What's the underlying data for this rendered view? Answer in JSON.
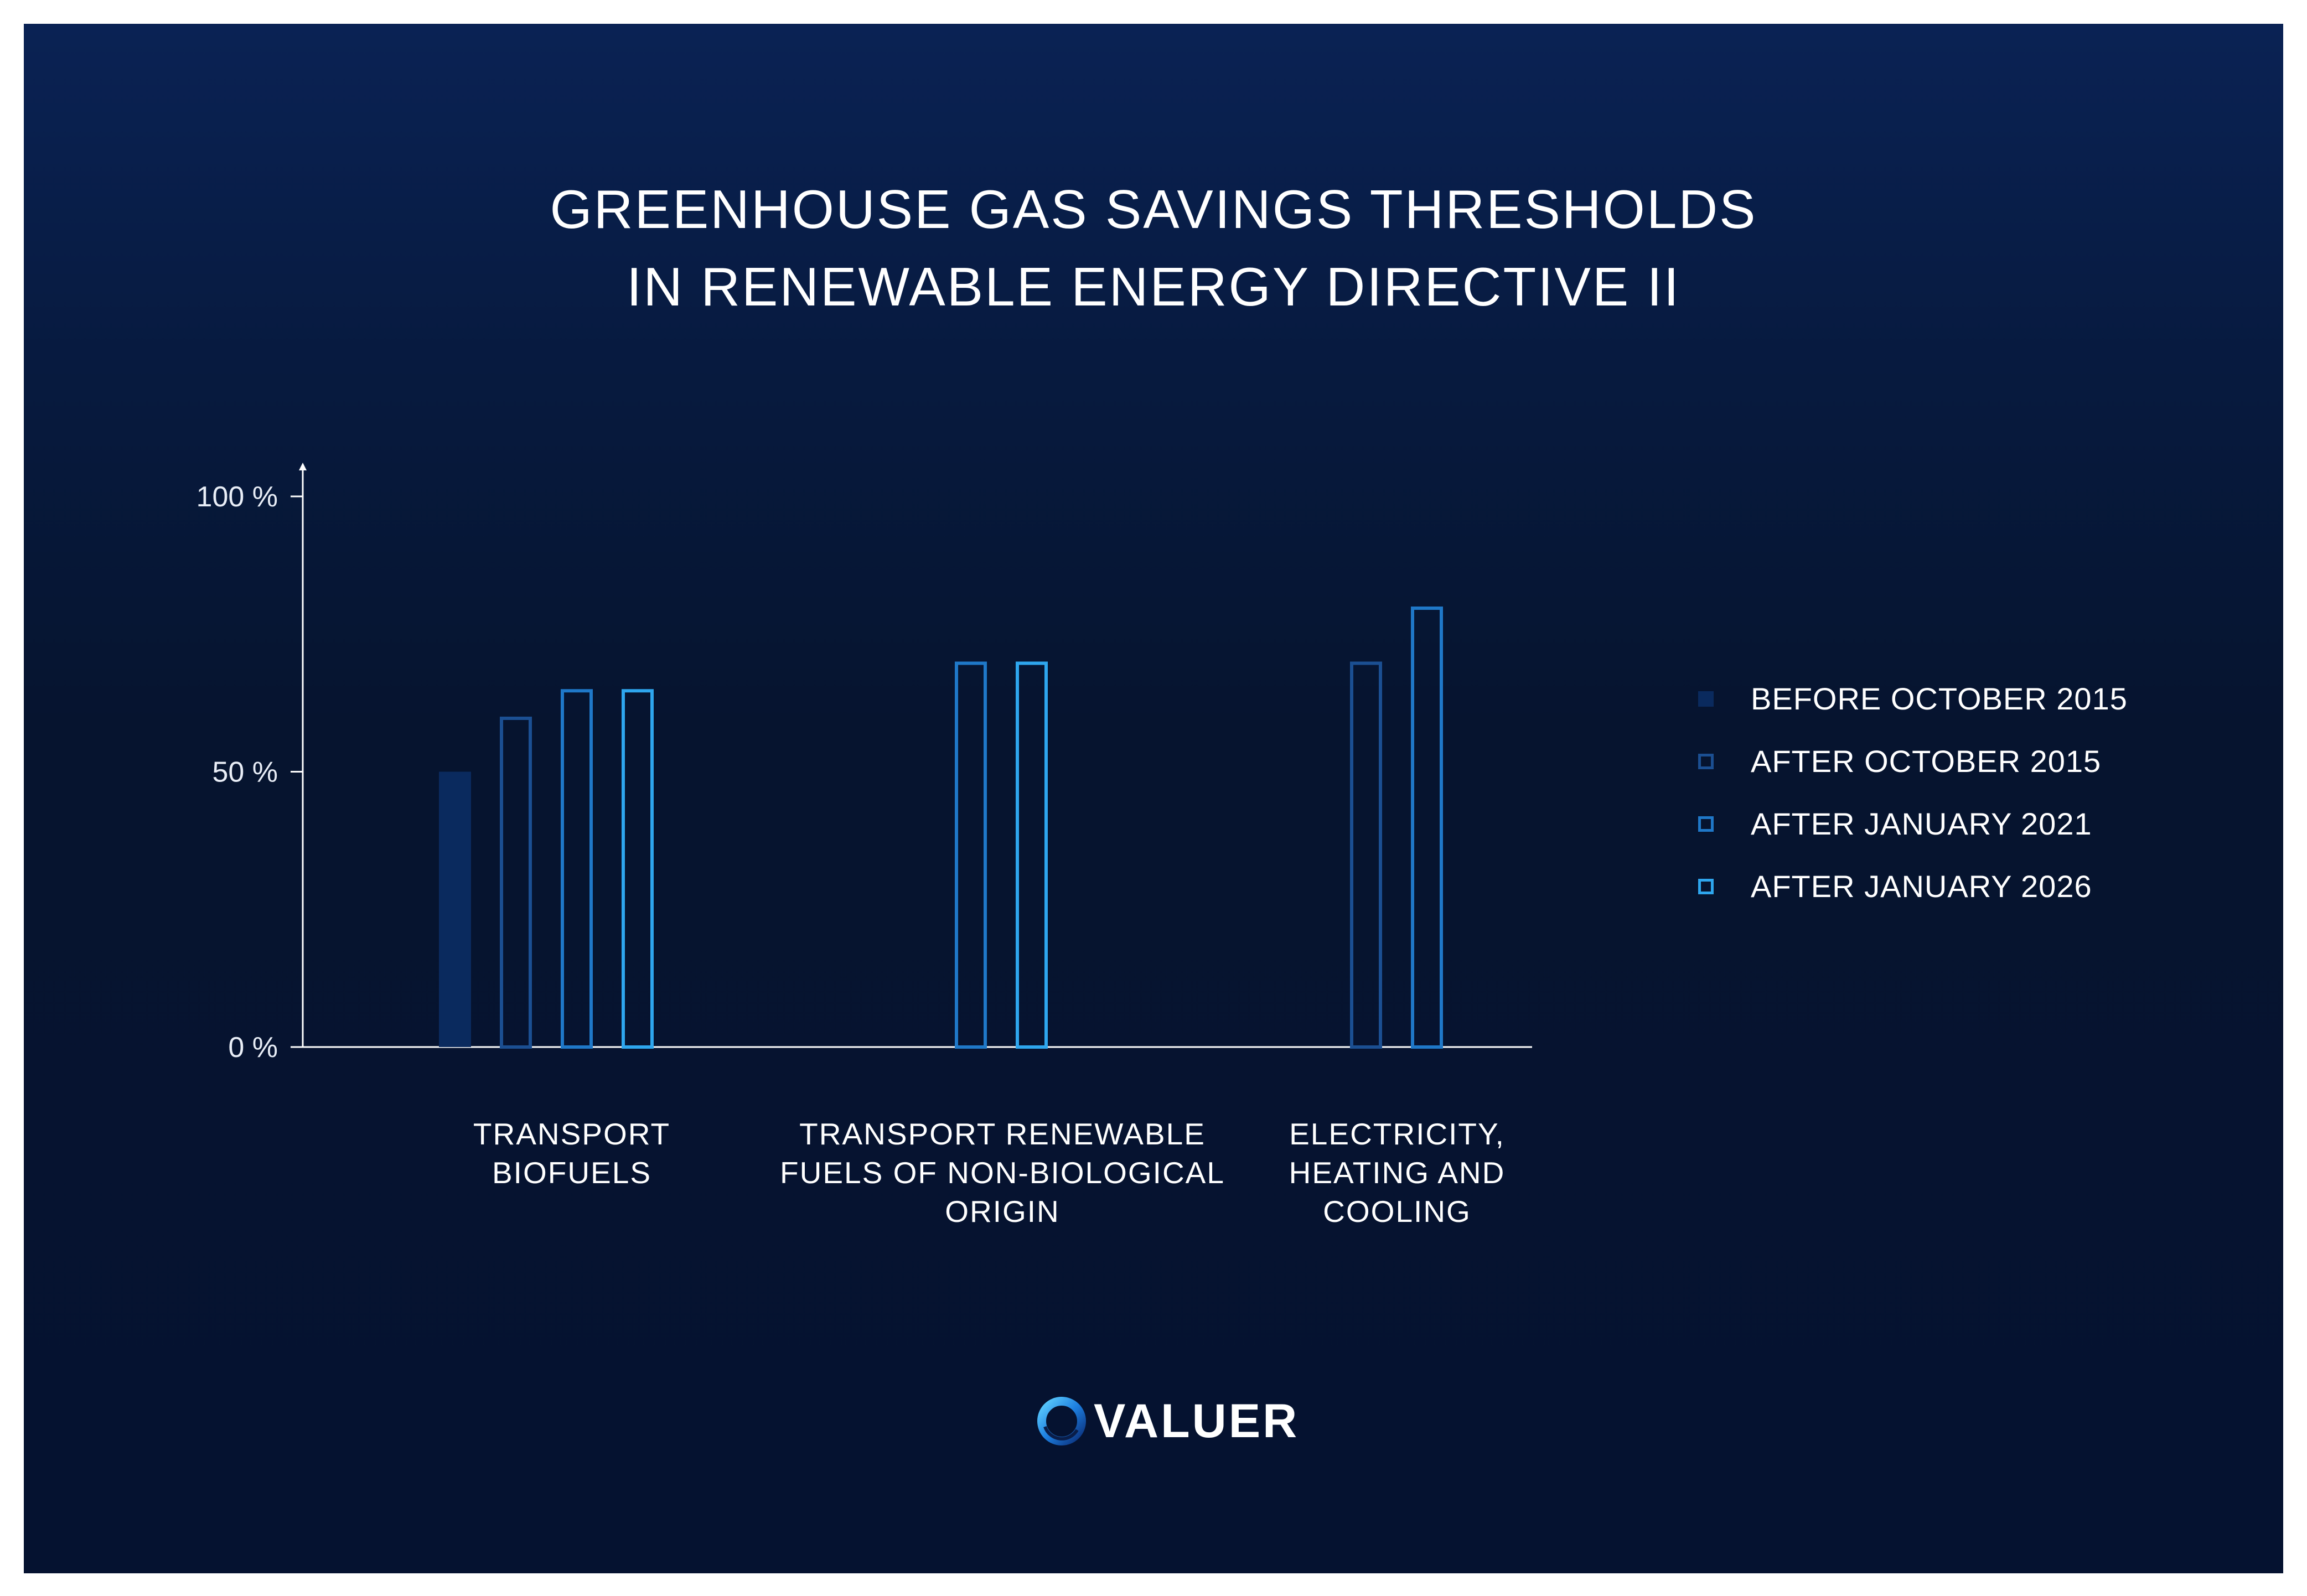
{
  "title": {
    "line1": "GREENHOUSE GAS SAVINGS THRESHOLDS",
    "line2": "IN RENEWABLE ENERGY DIRECTIVE II"
  },
  "brand": {
    "name": "VALUER",
    "logo_icon": "valuer-ring-logo-icon"
  },
  "colors": {
    "background_top": "#0a2254",
    "background_bottom": "#051230",
    "axis": "#ffffff",
    "text": "#ffffff"
  },
  "chart_data": {
    "type": "bar",
    "title": "GREENHOUSE GAS SAVINGS THRESHOLDS IN RENEWABLE ENERGY DIRECTIVE II",
    "xlabel": "",
    "ylabel": "",
    "ylim": [
      0,
      100
    ],
    "yticks": [
      {
        "value": 0,
        "label": "0 %"
      },
      {
        "value": 50,
        "label": "50 %"
      },
      {
        "value": 100,
        "label": "100 %"
      }
    ],
    "grid": false,
    "legend_position": "right",
    "categories": [
      {
        "name": "TRANSPORT BIOFUELS",
        "lines": [
          "TRANSPORT",
          "BIOFUELS"
        ]
      },
      {
        "name": "TRANSPORT RENEWABLE FUELS OF NON-BIOLOGICAL ORIGIN",
        "lines": [
          "TRANSPORT RENEWABLE",
          "FUELS OF NON-BIOLOGICAL",
          "ORIGIN"
        ]
      },
      {
        "name": "ELECTRICITY, HEATING AND COOLING",
        "lines": [
          "ELECTRICITY,",
          "HEATING AND",
          "COOLING"
        ]
      }
    ],
    "series": [
      {
        "name": "BEFORE OCTOBER 2015",
        "color": "#0a2a5e",
        "style": "filled",
        "values": [
          50,
          null,
          null
        ]
      },
      {
        "name": "AFTER OCTOBER 2015",
        "color": "#1b4f92",
        "style": "outline",
        "values": [
          60,
          null,
          70
        ]
      },
      {
        "name": "AFTER JANUARY 2021",
        "color": "#1f78c8",
        "style": "outline",
        "values": [
          65,
          70,
          80
        ]
      },
      {
        "name": "AFTER JANUARY 2026",
        "color": "#2ea6ee",
        "style": "outline",
        "values": [
          65,
          70,
          null
        ]
      }
    ]
  }
}
